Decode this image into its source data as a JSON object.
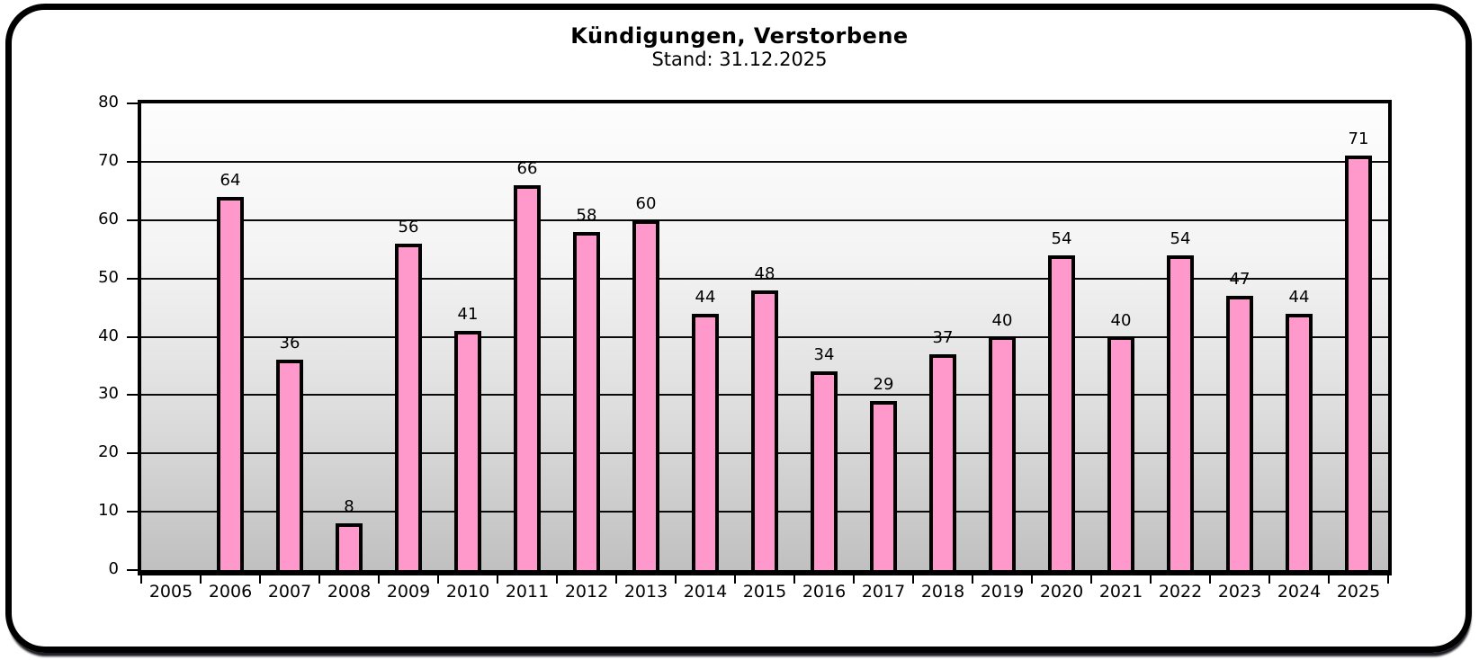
{
  "header": {
    "title": "Kündigungen, Verstorbene",
    "subtitle": "Stand: 31.12.2025"
  },
  "colors": {
    "bar_fill": "#FF99CC",
    "bar_border": "#000000",
    "frame_border": "#000000",
    "plot_gradient_top": "#FDFDFD",
    "plot_gradient_bottom": "#C0C0C0",
    "gridline": "#0A0A0A"
  },
  "chart_data": {
    "type": "bar",
    "title": "Kündigungen, Verstorbene",
    "subtitle": "Stand: 31.12.2025",
    "categories": [
      "2005",
      "2006",
      "2007",
      "2008",
      "2009",
      "2010",
      "2011",
      "2012",
      "2013",
      "2014",
      "2015",
      "2016",
      "2017",
      "2018",
      "2019",
      "2020",
      "2021",
      "2022",
      "2023",
      "2024",
      "2025"
    ],
    "values": [
      null,
      64,
      36,
      8,
      56,
      41,
      66,
      58,
      60,
      44,
      48,
      34,
      29,
      37,
      40,
      54,
      40,
      54,
      47,
      44,
      71
    ],
    "data_labels": [
      null,
      "64",
      "36",
      "8",
      "56",
      "41",
      "66",
      "58",
      "60",
      "44",
      "48",
      "34",
      "29",
      "37",
      "40",
      "54",
      "40",
      "54",
      "47",
      "44",
      "71"
    ],
    "xlabel": "",
    "ylabel": "",
    "ylim": [
      0,
      80
    ],
    "yticks": [
      0,
      10,
      20,
      30,
      40,
      50,
      60,
      70,
      80
    ],
    "grid": true,
    "legend_position": "none",
    "background": "vertical gradient white to gray"
  }
}
